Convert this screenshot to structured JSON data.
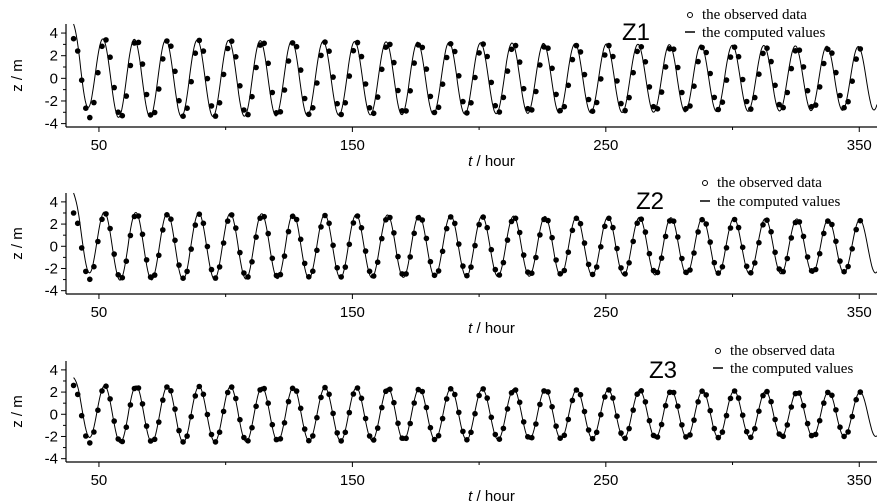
{
  "chart_data": [
    {
      "type": "line",
      "title": "Z1",
      "xlabel_italic": "t",
      "xlabel_rest": " / hour",
      "ylabel": "z / m",
      "xlim": [
        37,
        357
      ],
      "ylim": [
        -4.3,
        4.8
      ],
      "xticks": [
        50,
        150,
        250,
        350
      ],
      "yticks": [
        -4,
        -2,
        0,
        2,
        4
      ],
      "legend": [
        "the observed data",
        "the computed values"
      ],
      "observed": {
        "t0": 40.0,
        "period": 12.42,
        "amp_start": 3.5,
        "amp_end": 2.6,
        "phase": 0.0
      },
      "computed": {
        "t0": 40.0,
        "period": 12.42,
        "amp_start": 3.5,
        "amp_end": 2.8,
        "phase": 0.45,
        "initial": 4.8
      }
    },
    {
      "type": "line",
      "title": "Z2",
      "xlabel_italic": "t",
      "xlabel_rest": " / hour",
      "ylabel": "z / m",
      "xlim": [
        37,
        357
      ],
      "ylim": [
        -4.3,
        4.8
      ],
      "xticks": [
        50,
        150,
        250,
        350
      ],
      "yticks": [
        -4,
        -2,
        0,
        2,
        4
      ],
      "legend": [
        "the observed data",
        "the computed values"
      ],
      "observed": {
        "t0": 40.0,
        "period": 12.42,
        "amp_start": 3.0,
        "amp_end": 2.3,
        "phase": 0.0
      },
      "computed": {
        "t0": 40.0,
        "period": 12.42,
        "amp_start": 3.1,
        "amp_end": 2.4,
        "phase": 0.15,
        "initial": 4.8
      }
    },
    {
      "type": "line",
      "title": "Z3",
      "xlabel_italic": "t",
      "xlabel_rest": " / hour",
      "ylabel": "z / m",
      "xlim": [
        37,
        357
      ],
      "ylim": [
        -4.3,
        4.8
      ],
      "xticks": [
        50,
        150,
        250,
        350
      ],
      "yticks": [
        -4,
        -2,
        0,
        2,
        4
      ],
      "legend": [
        "the observed data",
        "the computed values"
      ],
      "observed": {
        "t0": 40.0,
        "period": 12.42,
        "amp_start": 2.6,
        "amp_end": 2.0,
        "phase": 0.0
      },
      "computed": {
        "t0": 40.0,
        "period": 12.42,
        "amp_start": 2.6,
        "amp_end": 2.0,
        "phase": 0.1,
        "initial": 3.3
      }
    }
  ]
}
